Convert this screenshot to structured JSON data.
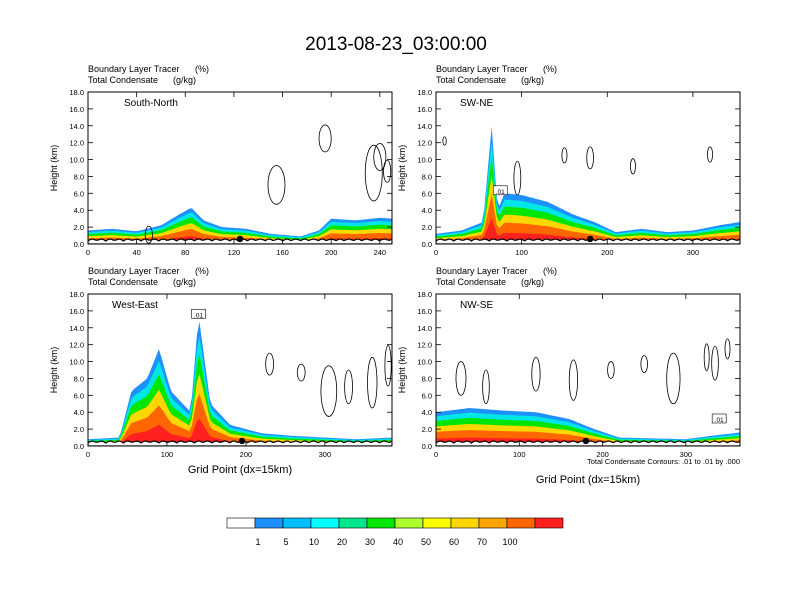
{
  "title": "2013-08-23_03:00:00",
  "ylabel": "Height (km)",
  "xlabel_bottom": "Grid Point (dx=15km)",
  "footnote": "Total Condensate Contours: .01 to .01 by .000",
  "colorbar": {
    "labels": [
      "1",
      "5",
      "10",
      "20",
      "30",
      "40",
      "50",
      "60",
      "70",
      "100"
    ],
    "colors": [
      "#ffffff",
      "#1e90ff",
      "#00bfff",
      "#00ffff",
      "#00e68c",
      "#00e600",
      "#adff2f",
      "#ffff00",
      "#ffd700",
      "#ffa500",
      "#ff6600",
      "#ff2020"
    ]
  },
  "chart_data": [
    {
      "type": "area",
      "panel": "South-North",
      "line1": "Boundary Layer Tracer",
      "unit1": "(%)",
      "line2": "Total Condensate",
      "unit2": "(g/kg)",
      "ylim": [
        0,
        18
      ],
      "yticks": [
        "0.0",
        "2.0",
        "4.0",
        "6.0",
        "8.0",
        "10.0",
        "12.0",
        "14.0",
        "16.0",
        "18.0"
      ],
      "xlim": [
        0,
        250
      ],
      "xticks": [
        "0",
        "40",
        "80",
        "120",
        "160",
        "200",
        "240"
      ],
      "xtick_values": [
        0,
        40,
        80,
        120,
        160,
        200,
        240
      ],
      "tracer_top_km": [
        [
          0,
          1.6
        ],
        [
          20,
          1.8
        ],
        [
          40,
          1.5
        ],
        [
          60,
          2.2
        ],
        [
          75,
          3.5
        ],
        [
          85,
          4.3
        ],
        [
          95,
          2.8
        ],
        [
          110,
          2.0
        ],
        [
          130,
          1.8
        ],
        [
          150,
          1.2
        ],
        [
          175,
          0.9
        ],
        [
          190,
          1.6
        ],
        [
          200,
          3.0
        ],
        [
          220,
          2.8
        ],
        [
          240,
          3.1
        ],
        [
          250,
          3.0
        ]
      ],
      "contour_label": "",
      "marker_x": 125
    },
    {
      "type": "area",
      "panel": "SW-NE",
      "line1": "Boundary Layer Tracer",
      "unit1": "(%)",
      "line2": "Total Condensate",
      "unit2": "(g/kg)",
      "ylim": [
        0,
        18
      ],
      "yticks": [
        "0.0",
        "2.0",
        "4.0",
        "6.0",
        "8.0",
        "10.0",
        "12.0",
        "14.0",
        "16.0",
        "18.0"
      ],
      "xlim": [
        0,
        355
      ],
      "xticks": [
        "0",
        "100",
        "200",
        "300"
      ],
      "xtick_values": [
        0,
        100,
        200,
        300
      ],
      "tracer_top_km": [
        [
          0,
          1.2
        ],
        [
          30,
          1.6
        ],
        [
          55,
          2.6
        ],
        [
          65,
          14.0
        ],
        [
          72,
          4.0
        ],
        [
          80,
          6.0
        ],
        [
          100,
          5.8
        ],
        [
          130,
          5.0
        ],
        [
          160,
          3.5
        ],
        [
          185,
          2.6
        ],
        [
          210,
          1.4
        ],
        [
          240,
          1.8
        ],
        [
          270,
          1.4
        ],
        [
          300,
          1.6
        ],
        [
          330,
          2.2
        ],
        [
          355,
          2.6
        ]
      ],
      "contour_label": ".01",
      "marker_x": 180
    },
    {
      "type": "area",
      "panel": "West-East",
      "line1": "Boundary Layer Tracer",
      "unit1": "(%)",
      "line2": "Total Condensate",
      "unit2": "(g/kg)",
      "ylim": [
        0,
        18
      ],
      "yticks": [
        "0.0",
        "2.0",
        "4.0",
        "6.0",
        "8.0",
        "10.0",
        "12.0",
        "14.0",
        "16.0",
        "18.0"
      ],
      "xlim": [
        0,
        385
      ],
      "xticks": [
        "0",
        "100",
        "200",
        "300"
      ],
      "xtick_values": [
        0,
        100,
        200,
        300
      ],
      "tracer_top_km": [
        [
          0,
          0.8
        ],
        [
          40,
          1.0
        ],
        [
          55,
          6.5
        ],
        [
          75,
          8.0
        ],
        [
          90,
          11.5
        ],
        [
          105,
          6.5
        ],
        [
          130,
          4.0
        ],
        [
          140,
          15.5
        ],
        [
          155,
          5.0
        ],
        [
          180,
          2.5
        ],
        [
          220,
          1.5
        ],
        [
          260,
          1.2
        ],
        [
          300,
          1.0
        ],
        [
          340,
          0.8
        ],
        [
          385,
          1.0
        ]
      ],
      "contour_label": ".01",
      "marker_x": 195
    },
    {
      "type": "area",
      "panel": "NW-SE",
      "line1": "Boundary Layer Tracer",
      "unit1": "(%)",
      "line2": "Total Condensate",
      "unit2": "(g/kg)",
      "ylim": [
        0,
        18
      ],
      "yticks": [
        "0.0",
        "2.0",
        "4.0",
        "6.0",
        "8.0",
        "10.0",
        "12.0",
        "14.0",
        "16.0",
        "18.0"
      ],
      "xlim": [
        0,
        365
      ],
      "xticks": [
        "0",
        "100",
        "200",
        "300"
      ],
      "xtick_values": [
        0,
        100,
        200,
        300
      ],
      "tracer_top_km": [
        [
          0,
          4.0
        ],
        [
          40,
          4.5
        ],
        [
          80,
          4.2
        ],
        [
          120,
          4.0
        ],
        [
          160,
          3.2
        ],
        [
          190,
          2.0
        ],
        [
          220,
          1.0
        ],
        [
          260,
          0.9
        ],
        [
          300,
          0.8
        ],
        [
          330,
          1.2
        ],
        [
          365,
          1.6
        ]
      ],
      "contour_label": ".01",
      "marker_x": 180
    }
  ]
}
